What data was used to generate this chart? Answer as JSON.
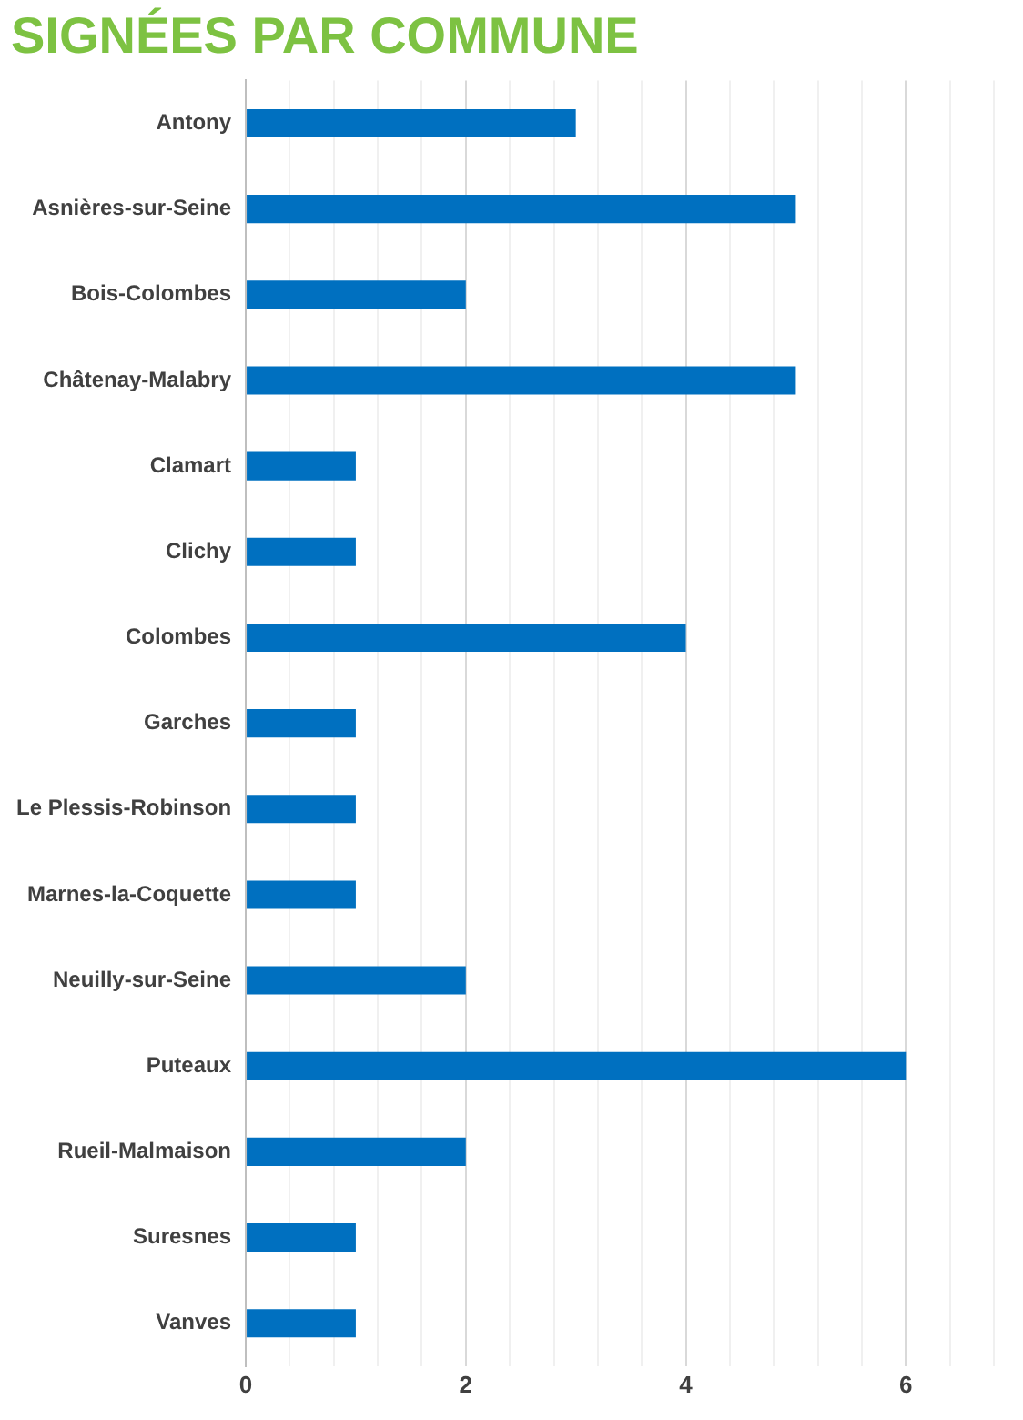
{
  "chart_data": {
    "type": "bar",
    "orientation": "horizontal",
    "title": "SIGNÉES PAR COMMUNE",
    "categories": [
      "Antony",
      "Asnières-sur-Seine",
      "Bois-Colombes",
      "Châtenay-Malabry",
      "Clamart",
      "Clichy",
      "Colombes",
      "Garches",
      "Le Plessis-Robinson",
      "Marnes-la-Coquette",
      "Neuilly-sur-Seine",
      "Puteaux",
      "Rueil-Malmaison",
      "Suresnes",
      "Vanves"
    ],
    "values": [
      3,
      5,
      2,
      5,
      1,
      1,
      4,
      1,
      1,
      1,
      2,
      6,
      2,
      1,
      1
    ],
    "color": "#0070c0",
    "xlim": [
      0,
      6.8
    ],
    "xticks": [
      0,
      {
        "value": 0.4,
        "label": null
      },
      {
        "value": 0.8,
        "label": null
      },
      {
        "value": 1.2,
        "label": null
      },
      {
        "value": 1.6,
        "label": null
      },
      2,
      {
        "value": 2.4,
        "label": null
      },
      {
        "value": 2.8,
        "label": null
      },
      {
        "value": 3.2,
        "label": null
      },
      {
        "value": 3.6,
        "label": null
      },
      4,
      {
        "value": 4.4,
        "label": null
      },
      {
        "value": 4.8,
        "label": null
      },
      {
        "value": 5.2,
        "label": null
      },
      {
        "value": 5.6,
        "label": null
      },
      6,
      {
        "value": 6.4,
        "label": null
      },
      {
        "value": 6.8,
        "label": null
      }
    ],
    "grid": "x"
  }
}
